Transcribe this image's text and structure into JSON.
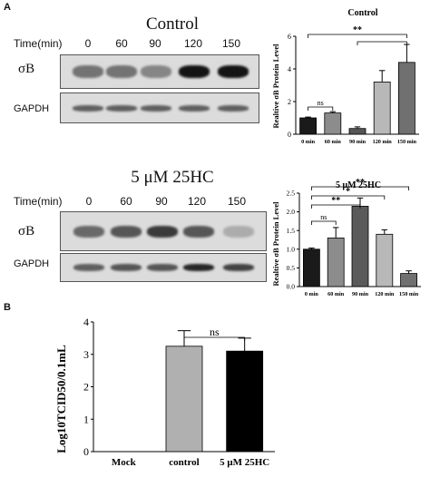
{
  "panel_a_label": "A",
  "panel_b_label": "B",
  "blots": [
    {
      "title": "Control",
      "time_label": "Time(min)",
      "times": [
        "0",
        "60",
        "90",
        "120",
        "150"
      ],
      "rows": [
        "σB",
        "GAPDH"
      ],
      "sigma_intensity": [
        0.45,
        0.45,
        0.35,
        0.95,
        0.95
      ],
      "gapdh_intensity": [
        0.55,
        0.55,
        0.55,
        0.55,
        0.55
      ]
    },
    {
      "title": "5 μM 25HC",
      "time_label": "Time(min)",
      "times": [
        "0",
        "60",
        "90",
        "120",
        "150"
      ],
      "rows": [
        "σB",
        "GAPDH"
      ],
      "sigma_intensity": [
        0.5,
        0.6,
        0.75,
        0.6,
        0.15
      ],
      "gapdh_intensity": [
        0.55,
        0.6,
        0.6,
        0.85,
        0.7
      ]
    }
  ],
  "chart_data": [
    {
      "type": "bar",
      "title": "Control",
      "ylabel": "Realtive σB Protein Level",
      "xlabel": "",
      "categories": [
        "0 min",
        "60 min",
        "90 min",
        "120 min",
        "150 min"
      ],
      "values": [
        1.0,
        1.3,
        0.35,
        3.2,
        4.4
      ],
      "errors": [
        0.05,
        0.08,
        0.1,
        0.7,
        1.1
      ],
      "colors": [
        "#1a1a1a",
        "#8c8c8c",
        "#555555",
        "#b8b8b8",
        "#707070"
      ],
      "ylim": [
        0,
        6
      ],
      "yticks": [
        0,
        2,
        4,
        6
      ],
      "significance": [
        {
          "from": 0,
          "to": 1,
          "label": "ns"
        },
        {
          "from": 0,
          "to": 4,
          "label": "**"
        },
        {
          "from": 2,
          "to": 4,
          "label": ""
        }
      ]
    },
    {
      "type": "bar",
      "title": "5 μM 25HC",
      "ylabel": "Realtive σB Protein Level",
      "xlabel": "",
      "categories": [
        "0 min",
        "60 min",
        "90 min",
        "120 min",
        "150 min"
      ],
      "values": [
        1.0,
        1.3,
        2.15,
        1.4,
        0.35
      ],
      "errors": [
        0.03,
        0.28,
        0.22,
        0.12,
        0.07
      ],
      "colors": [
        "#1a1a1a",
        "#8c8c8c",
        "#5a5a5a",
        "#b8b8b8",
        "#707070"
      ],
      "ylim": [
        0,
        2.5
      ],
      "yticks": [
        0.0,
        0.5,
        1.0,
        1.5,
        2.0,
        2.5
      ],
      "significance": [
        {
          "from": 0,
          "to": 1,
          "label": "ns"
        },
        {
          "from": 0,
          "to": 2,
          "label": "**"
        },
        {
          "from": 0,
          "to": 3,
          "label": "*"
        },
        {
          "from": 0,
          "to": 4,
          "label": "**"
        }
      ]
    },
    {
      "type": "bar",
      "title": "",
      "ylabel": "Log10TCID50/0.1mL",
      "xlabel": "",
      "categories": [
        "Mock",
        "control",
        "5 μM 25HC"
      ],
      "values": [
        0,
        3.25,
        3.1
      ],
      "errors": [
        0,
        0.48,
        0.4
      ],
      "colors": [
        "#ffffff",
        "#b0b0b0",
        "#000000"
      ],
      "ylim": [
        0,
        4
      ],
      "yticks": [
        0,
        1,
        2,
        3,
        4
      ],
      "significance": [
        {
          "from": 1,
          "to": 2,
          "label": "ns"
        }
      ]
    }
  ]
}
